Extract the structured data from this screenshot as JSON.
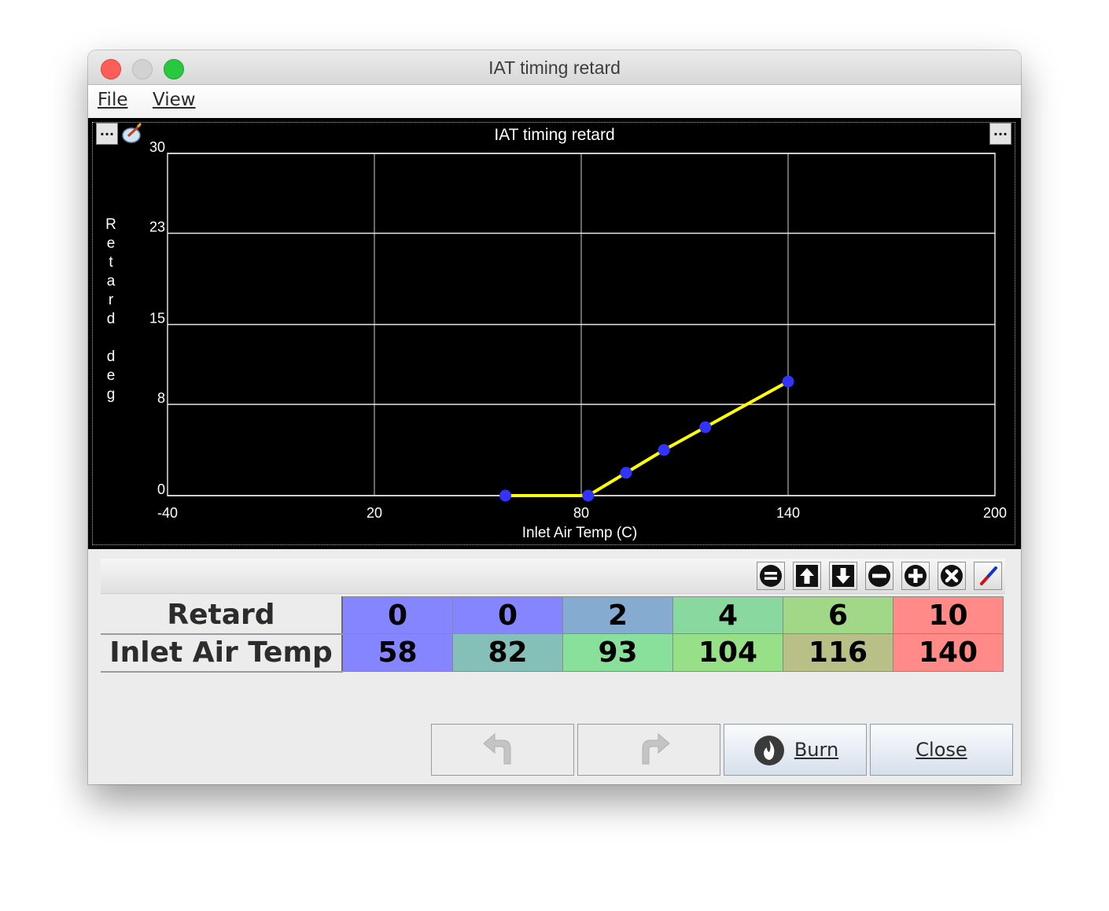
{
  "window": {
    "title": "IAT timing retard"
  },
  "menubar": {
    "file_label": "File",
    "view_label": "View"
  },
  "chart_data": {
    "type": "line",
    "title": "IAT timing retard",
    "xlabel": "Inlet Air Temp (C)",
    "ylabel": "Retard deg",
    "xlim": [
      -40,
      200
    ],
    "ylim": [
      0,
      30
    ],
    "x_ticks": [
      -40,
      20,
      80,
      140,
      200
    ],
    "y_ticks": [
      0,
      8,
      15,
      23,
      30
    ],
    "x_tick_labels": [
      "-40",
      "20",
      "80",
      "140",
      "200"
    ],
    "y_tick_labels": [
      "0",
      "8",
      "15",
      "23",
      "30"
    ],
    "grid": true,
    "line_color": "#ffff00",
    "point_color": "#3333ff",
    "series": [
      {
        "name": "Retard",
        "x": [
          58,
          82,
          93,
          104,
          116,
          140
        ],
        "y": [
          0,
          0,
          2,
          4,
          6,
          10
        ]
      }
    ]
  },
  "chart_buttons": {
    "left_dots": "...",
    "right_dots": "..."
  },
  "table": {
    "rows": [
      {
        "label": "Retard",
        "values": [
          "0",
          "0",
          "2",
          "4",
          "6",
          "10"
        ],
        "colors": [
          "#8585ff",
          "#8585ff",
          "#85abd0",
          "#88d8a0",
          "#a0d888",
          "#ff8a88"
        ]
      },
      {
        "label": "Inlet Air Temp",
        "values": [
          "58",
          "82",
          "93",
          "104",
          "116",
          "140"
        ],
        "colors": [
          "#8585ff",
          "#85c0b8",
          "#88e09a",
          "#98e088",
          "#b8c088",
          "#ff8a88"
        ]
      }
    ]
  },
  "buttons": {
    "burn_label": "Burn",
    "close_label": "Close"
  }
}
